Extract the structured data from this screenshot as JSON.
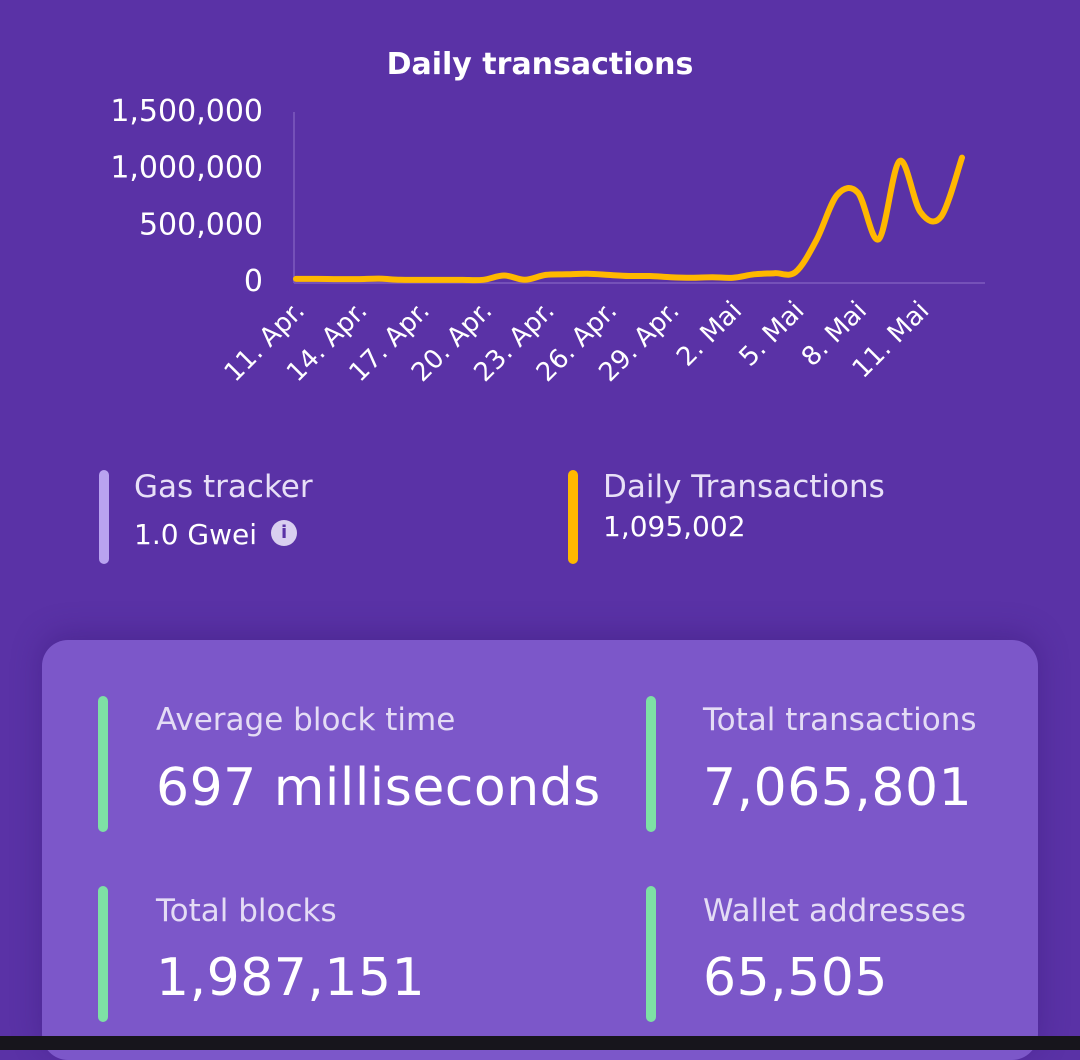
{
  "chart_data": {
    "type": "line",
    "title": "Daily transactions",
    "xlabel": "",
    "ylabel": "",
    "ylim": [
      0,
      1500000
    ],
    "yticks": [
      0,
      500000,
      1000000,
      1500000
    ],
    "ytick_labels": [
      "0",
      "500,000",
      "1,000,000",
      "1,500,000"
    ],
    "x_tick_labels": [
      "11. Apr.",
      "14. Apr.",
      "17. Apr.",
      "20. Apr.",
      "23. Apr.",
      "26. Apr.",
      "29. Apr.",
      "2. Mai",
      "5. Mai",
      "8. Mai",
      "11. Mai"
    ],
    "x_tick_index": [
      0,
      3,
      6,
      9,
      12,
      15,
      18,
      21,
      24,
      27,
      30
    ],
    "line_color": "#ffb800",
    "series": [
      {
        "values": [
          10000,
          10000,
          8000,
          8000,
          12000,
          2000,
          1000,
          1000,
          1000,
          2000,
          40000,
          2000,
          45000,
          50000,
          55000,
          45000,
          35000,
          35000,
          25000,
          20000,
          25000,
          20000,
          50000,
          60000,
          70000,
          350000,
          750000,
          770000,
          360000,
          1050000,
          600000,
          560000,
          1080000
        ]
      }
    ]
  },
  "gas_tracker": {
    "label": "Gas tracker",
    "value": "1.0 Gwei",
    "info_icon": "info-icon",
    "color": "#b9a3f0"
  },
  "daily_transactions": {
    "label": "Daily Transactions",
    "value": "1,095,002",
    "color": "#ffb800"
  },
  "stats": {
    "accent": "#7ee0a5",
    "average_block_time": {
      "label": "Average block time",
      "value": "697 milliseconds"
    },
    "total_transactions": {
      "label": "Total transactions",
      "value": "7,065,801"
    },
    "total_blocks": {
      "label": "Total blocks",
      "value": "1,987,151"
    },
    "wallet_addresses": {
      "label": "Wallet addresses",
      "value": "65,505"
    }
  }
}
